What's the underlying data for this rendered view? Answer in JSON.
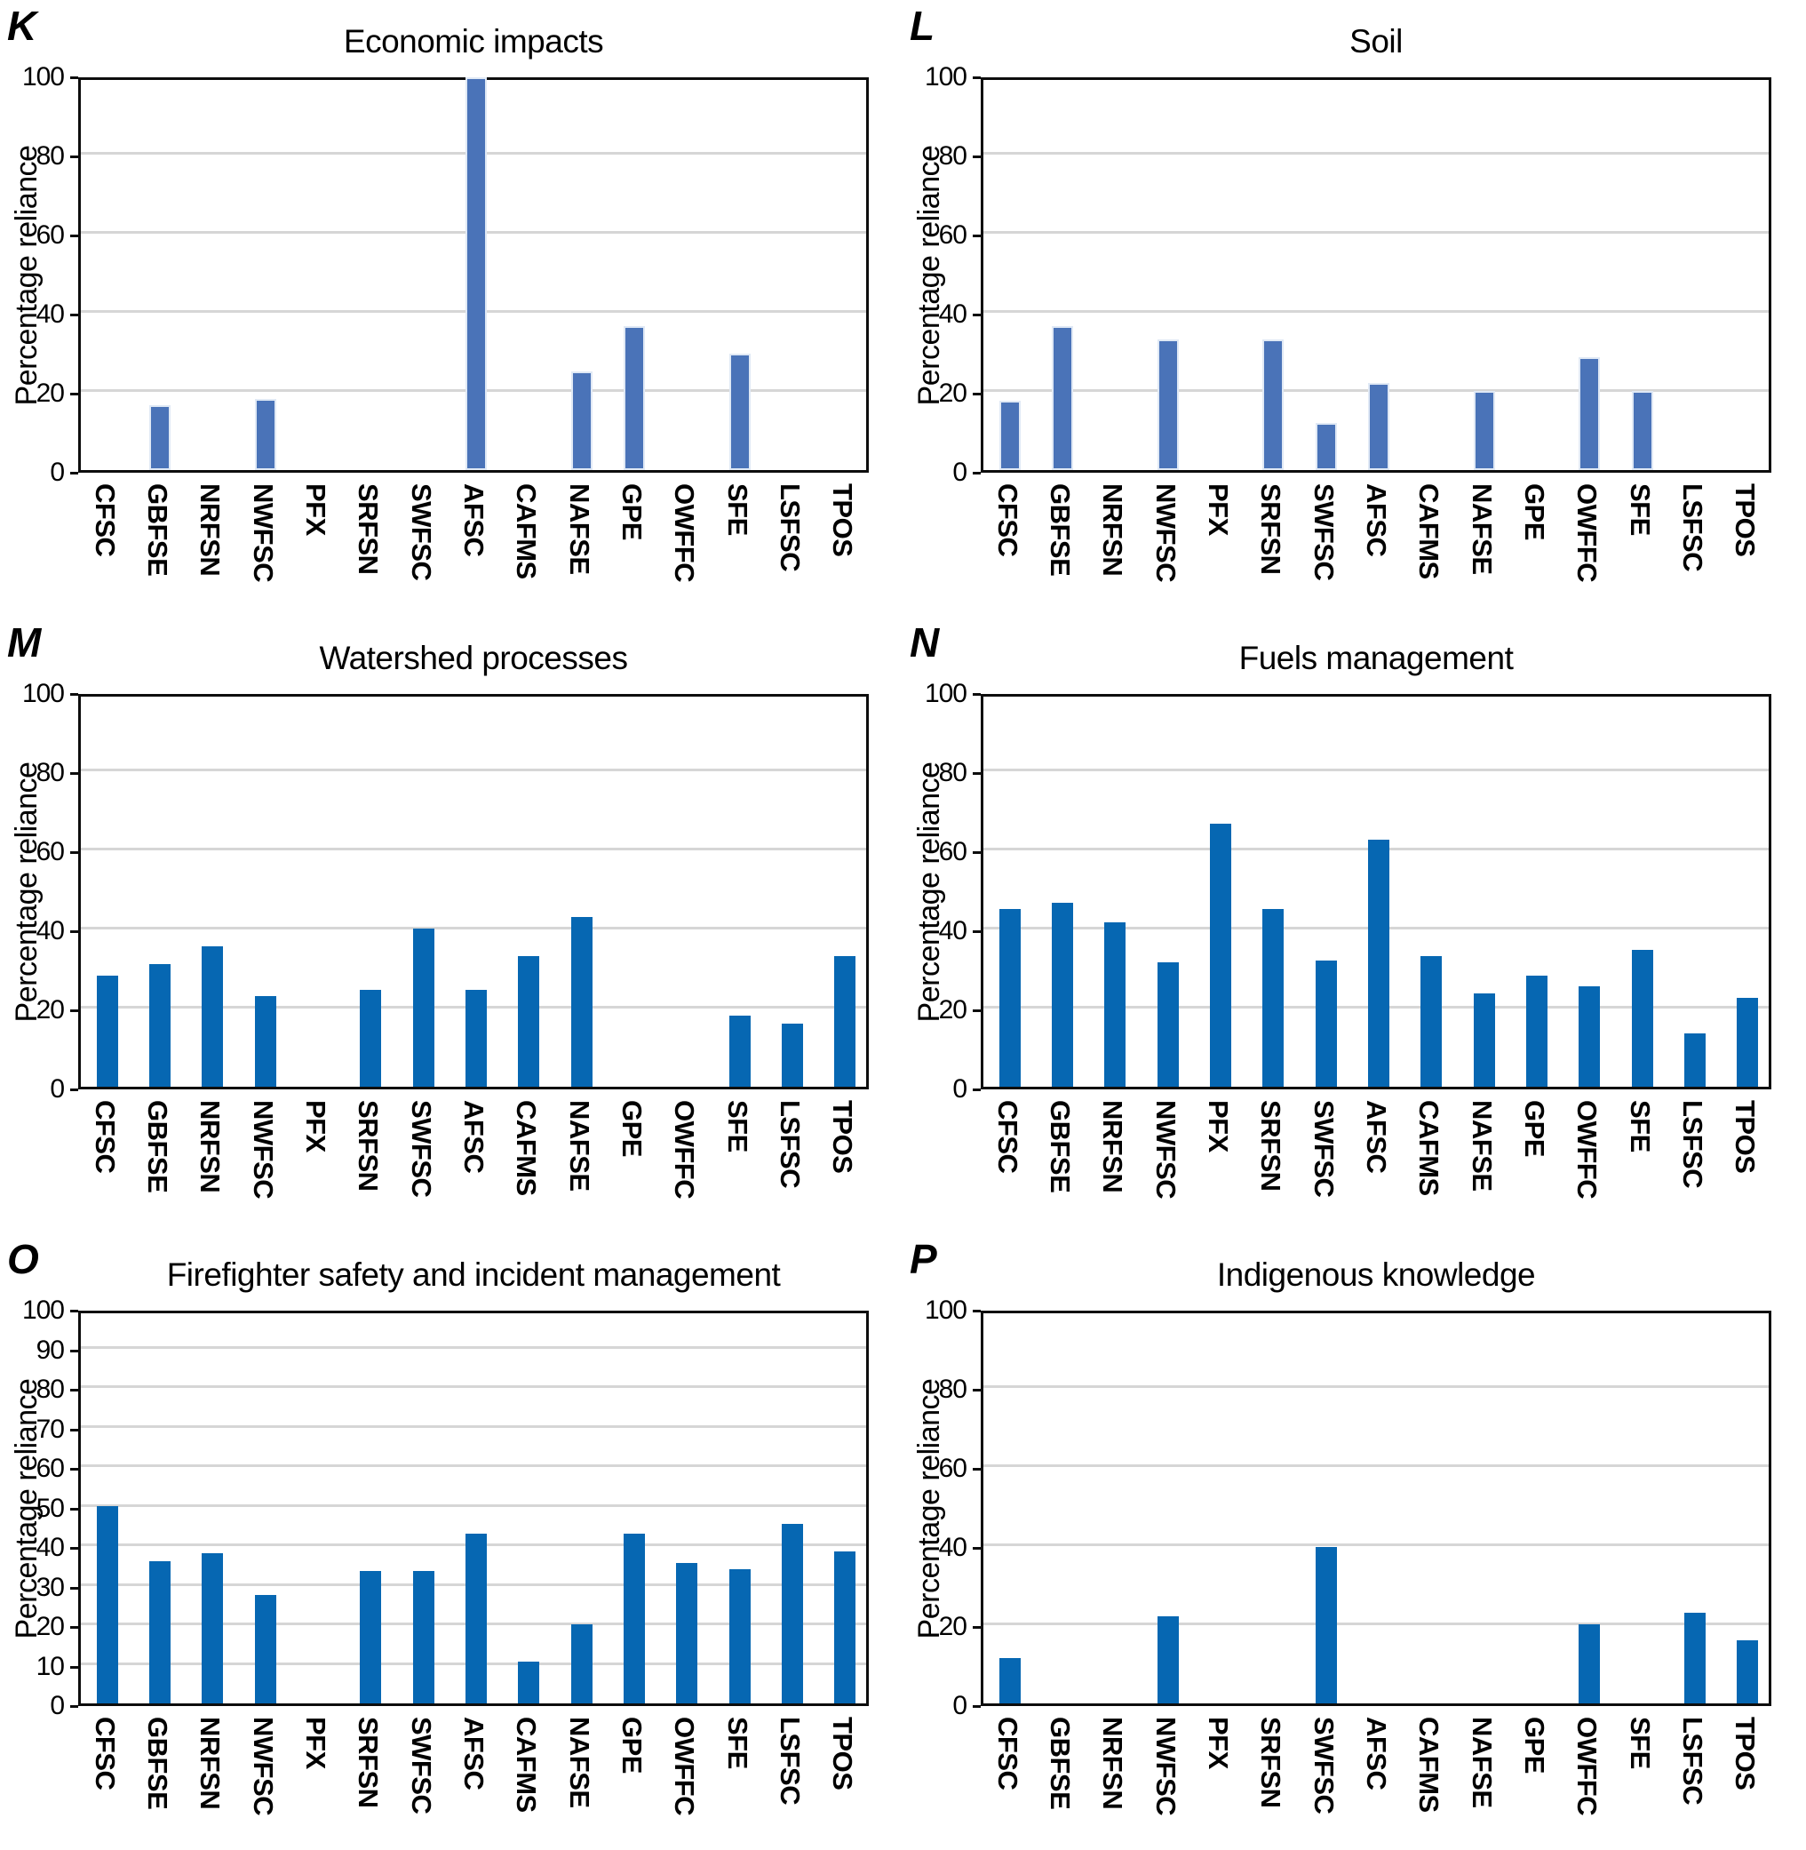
{
  "figure": {
    "ylabel": "Percentage reliance",
    "categories": [
      "CFSC",
      "GBFSE",
      "NRFSN",
      "NWFSC",
      "PFX",
      "SRFSN",
      "SWFSC",
      "AFSC",
      "CAFMS",
      "NAFSE",
      "GPE",
      "OWFFC",
      "SFE",
      "LSFSC",
      "TPOS"
    ],
    "panel_letters": [
      "K",
      "L",
      "M",
      "N",
      "O",
      "P"
    ]
  },
  "chart_data": [
    {
      "type": "bar",
      "panel": "K",
      "title": "Economic impacts",
      "xlabel": "",
      "ylabel": "Percentage reliance",
      "ylim": [
        0,
        100
      ],
      "ytick_interval": 20,
      "grid": true,
      "legend": "none",
      "bar_color": "#4a73b8",
      "bar_border": "#e0e9f5",
      "categories": [
        "CFSC",
        "GBFSE",
        "NRFSN",
        "NWFSC",
        "PFX",
        "SRFSN",
        "SWFSC",
        "AFSC",
        "CAFMS",
        "NAFSE",
        "GPE",
        "OWFFC",
        "SFE",
        "LSFSC",
        "TPOS"
      ],
      "values": [
        0,
        16.5,
        0,
        18,
        0,
        0,
        0,
        100,
        0,
        25,
        36.5,
        0,
        29.5,
        0,
        0
      ]
    },
    {
      "type": "bar",
      "panel": "L",
      "title": "Soil",
      "xlabel": "",
      "ylabel": "Percentage reliance",
      "ylim": [
        0,
        100
      ],
      "ytick_interval": 20,
      "grid": true,
      "legend": "none",
      "bar_color": "#4a73b8",
      "bar_border": "#e0e9f5",
      "categories": [
        "CFSC",
        "GBFSE",
        "NRFSN",
        "NWFSC",
        "PFX",
        "SRFSN",
        "SWFSC",
        "AFSC",
        "CAFMS",
        "NAFSE",
        "GPE",
        "OWFFC",
        "SFE",
        "LSFSC",
        "TPOS"
      ],
      "values": [
        17.5,
        36.5,
        0,
        33,
        0,
        33,
        12,
        22,
        0,
        20,
        0,
        28.5,
        20,
        0,
        0
      ]
    },
    {
      "type": "bar",
      "panel": "M",
      "title": "Watershed processes",
      "xlabel": "",
      "ylabel": "Percentage reliance",
      "ylim": [
        0,
        100
      ],
      "ytick_interval": 20,
      "grid": true,
      "legend": "none",
      "bar_color": "#0667b2",
      "bar_border": null,
      "categories": [
        "CFSC",
        "GBFSE",
        "NRFSN",
        "NWFSC",
        "PFX",
        "SRFSN",
        "SWFSC",
        "AFSC",
        "CAFMS",
        "NAFSE",
        "GPE",
        "OWFFC",
        "SFE",
        "LSFSC",
        "TPOS"
      ],
      "values": [
        28,
        31,
        35.5,
        23,
        0,
        24.5,
        40,
        24.5,
        33,
        43,
        0,
        0,
        18,
        16,
        33
      ]
    },
    {
      "type": "bar",
      "panel": "N",
      "title": "Fuels management",
      "xlabel": "",
      "ylabel": "Percentage reliance",
      "ylim": [
        0,
        100
      ],
      "ytick_interval": 20,
      "grid": true,
      "legend": "none",
      "bar_color": "#0667b2",
      "bar_border": null,
      "categories": [
        "CFSC",
        "GBFSE",
        "NRFSN",
        "NWFSC",
        "PFX",
        "SRFSN",
        "SWFSC",
        "AFSC",
        "CAFMS",
        "NAFSE",
        "GPE",
        "OWFFC",
        "SFE",
        "LSFSC",
        "TPOS"
      ],
      "values": [
        45,
        46.5,
        41.5,
        31.5,
        66.5,
        45,
        32,
        62.5,
        33,
        23.5,
        28,
        25.5,
        34.5,
        13.5,
        22.5
      ]
    },
    {
      "type": "bar",
      "panel": "O",
      "title": "Firefighter safety and incident management",
      "xlabel": "",
      "ylabel": "Percentage reliance",
      "ylim": [
        0,
        100
      ],
      "ytick_interval": 10,
      "grid": true,
      "legend": "none",
      "bar_color": "#0667b2",
      "bar_border": null,
      "categories": [
        "CFSC",
        "GBFSE",
        "NRFSN",
        "NWFSC",
        "PFX",
        "SRFSN",
        "SWFSC",
        "AFSC",
        "CAFMS",
        "NAFSE",
        "GPE",
        "OWFFC",
        "SFE",
        "LSFSC",
        "TPOS"
      ],
      "values": [
        50,
        36,
        38,
        27.5,
        0,
        33.5,
        33.5,
        43,
        10.5,
        20,
        43,
        35.5,
        34,
        45.5,
        38.5
      ]
    },
    {
      "type": "bar",
      "panel": "P",
      "title": "Indigenous knowledge",
      "xlabel": "",
      "ylabel": "Percentage reliance",
      "ylim": [
        0,
        100
      ],
      "ytick_interval": 20,
      "grid": true,
      "legend": "none",
      "bar_color": "#0667b2",
      "bar_border": null,
      "categories": [
        "CFSC",
        "GBFSE",
        "NRFSN",
        "NWFSC",
        "PFX",
        "SRFSN",
        "SWFSC",
        "AFSC",
        "CAFMS",
        "NAFSE",
        "GPE",
        "OWFFC",
        "SFE",
        "LSFSC",
        "TPOS"
      ],
      "values": [
        11.5,
        0,
        0,
        22,
        0,
        0,
        39.5,
        0,
        0,
        0,
        0,
        20,
        0,
        23,
        16
      ]
    }
  ]
}
